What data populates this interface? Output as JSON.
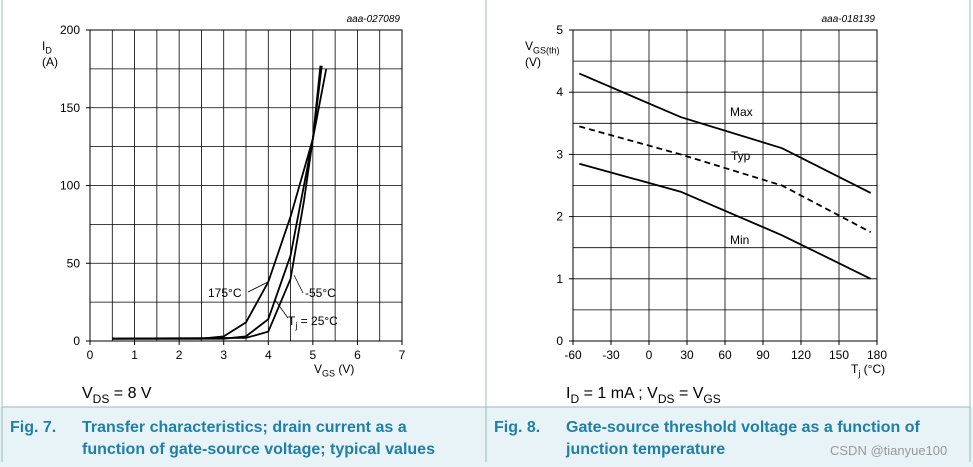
{
  "chart_data": [
    {
      "type": "line",
      "figure_id": "aaa-027089",
      "ylabel": [
        "I",
        "D"
      ],
      "yunit": "(A)",
      "xlabel": [
        "V",
        "GS",
        " (V)"
      ],
      "xlim": [
        0,
        7
      ],
      "ylim": [
        0,
        200
      ],
      "xticks": [
        0,
        1,
        2,
        3,
        4,
        5,
        6,
        7
      ],
      "yticks": [
        0,
        50,
        100,
        150,
        200
      ],
      "x_gridlines": [
        0,
        0.5,
        1,
        1.5,
        2,
        2.5,
        3,
        3.5,
        4,
        4.5,
        5,
        5.5,
        6,
        6.5,
        7
      ],
      "y_gridlines": [
        0,
        25,
        50,
        75,
        100,
        125,
        150,
        175,
        200
      ],
      "series": [
        {
          "name": [
            "175°C"
          ],
          "color": "#000000",
          "x": [
            0.5,
            2.5,
            3,
            3.5,
            4,
            4.5,
            5,
            5.3
          ],
          "values": [
            1.5,
            1.5,
            3,
            12,
            38,
            80,
            130,
            175
          ]
        },
        {
          "name": [
            "T",
            "j",
            " = 25°C"
          ],
          "color": "#000000",
          "x": [
            0.5,
            3,
            3.5,
            4,
            4.5,
            5,
            5.2
          ],
          "values": [
            1.5,
            1.5,
            3,
            14,
            55,
            130,
            177
          ]
        },
        {
          "name": [
            "-55°C"
          ],
          "color": "#000000",
          "x": [
            0.5,
            3.5,
            4,
            4.5,
            4.8,
            5,
            5.17
          ],
          "values": [
            1.5,
            2,
            6,
            40,
            90,
            130,
            177
          ]
        }
      ],
      "condition": [
        "V",
        "DS",
        " = 8 V"
      ],
      "caption_number": "Fig. 7.",
      "caption": [
        "Transfer characteristics; drain current as a",
        "function of gate-source voltage; typical values"
      ]
    },
    {
      "type": "line",
      "figure_id": "aaa-018139",
      "ylabel": [
        "V",
        "GS(th)"
      ],
      "yunit": "(V)",
      "xlabel": [
        "T",
        "j",
        " (°C)"
      ],
      "xlim": [
        -60,
        180
      ],
      "ylim": [
        0,
        5
      ],
      "xticks": [
        -60,
        -30,
        0,
        30,
        60,
        90,
        120,
        150,
        180
      ],
      "yticks": [
        0,
        1,
        2,
        3,
        4,
        5
      ],
      "x_gridlines": [
        -60,
        -30,
        0,
        30,
        60,
        90,
        120,
        150,
        180
      ],
      "y_gridlines": [
        0,
        0.5,
        1,
        1.5,
        2,
        2.5,
        3,
        3.5,
        4,
        4.5,
        5
      ],
      "series": [
        {
          "name": [
            "Max"
          ],
          "color": "#000000",
          "x": [
            -55,
            25,
            105,
            175
          ],
          "values": [
            4.3,
            3.6,
            3.1,
            2.38
          ]
        },
        {
          "name": [
            "Typ"
          ],
          "color": "#000000",
          "dashed": true,
          "x": [
            -55,
            25,
            105,
            175
          ],
          "values": [
            3.45,
            3.0,
            2.5,
            1.75
          ]
        },
        {
          "name": [
            "Min"
          ],
          "color": "#000000",
          "x": [
            -55,
            25,
            105,
            175
          ],
          "values": [
            2.85,
            2.4,
            1.7,
            1.0
          ]
        }
      ],
      "condition": [
        "I",
        "D",
        " = 1 mA ; V",
        "DS",
        " = V",
        "GS"
      ],
      "caption_number": "Fig. 8.",
      "caption": [
        "Gate-source threshold voltage as a function of",
        "junction temperature"
      ]
    }
  ],
  "watermark": "CSDN @tianyue100"
}
